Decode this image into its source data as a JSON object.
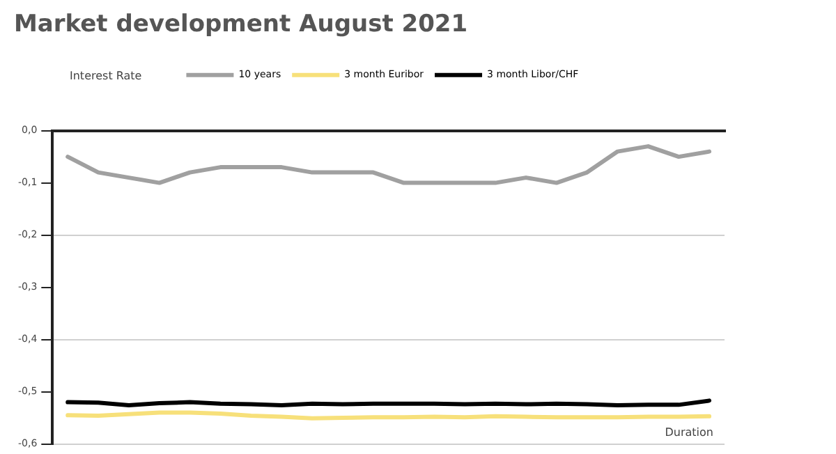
{
  "chart_data": {
    "type": "line",
    "title": "Market development August 2021",
    "ylabel": "Interest Rate",
    "xlabel": "Duration",
    "categories": [
      null,
      null,
      null,
      null,
      null,
      null,
      null,
      null,
      null,
      null,
      null,
      null,
      null,
      null,
      null,
      null,
      null,
      null,
      null,
      null,
      null,
      null
    ],
    "series": [
      {
        "name": "10 years",
        "color": "#a0a0a0",
        "values": [
          -0.05,
          -0.08,
          -0.09,
          -0.1,
          -0.08,
          -0.07,
          -0.07,
          -0.07,
          -0.08,
          -0.08,
          -0.08,
          -0.1,
          -0.1,
          -0.1,
          -0.1,
          -0.09,
          -0.1,
          -0.08,
          -0.04,
          -0.03,
          -0.05,
          -0.04
        ]
      },
      {
        "name": "3 month Euribor",
        "color": "#f7e07a",
        "values": [
          -0.545,
          -0.546,
          -0.543,
          -0.54,
          -0.54,
          -0.542,
          -0.546,
          -0.548,
          -0.551,
          -0.55,
          -0.549,
          -0.549,
          -0.548,
          -0.549,
          -0.547,
          -0.548,
          -0.549,
          -0.549,
          -0.549,
          -0.548,
          -0.548,
          -0.547
        ]
      },
      {
        "name": "3 month Libor/CHF",
        "color": "#000000",
        "values": [
          -0.52,
          -0.521,
          -0.526,
          -0.522,
          -0.52,
          -0.523,
          -0.524,
          -0.526,
          -0.523,
          -0.524,
          -0.523,
          -0.523,
          -0.523,
          -0.524,
          -0.523,
          -0.524,
          -0.523,
          -0.524,
          -0.526,
          -0.525,
          -0.525,
          -0.517
        ]
      }
    ],
    "ylim": [
      -0.6,
      0
    ],
    "yticks": [
      {
        "value": 0,
        "label": "0,0"
      },
      {
        "value": -0.1,
        "label": "-0,1"
      },
      {
        "value": -0.2,
        "label": "-0,2"
      },
      {
        "value": -0.3,
        "label": "-0,3"
      },
      {
        "value": -0.4,
        "label": "-0,4"
      },
      {
        "value": -0.5,
        "label": "-0,5"
      },
      {
        "value": -0.6,
        "label": "-0,6"
      }
    ],
    "grid": "y",
    "legend": "top",
    "marker": "none",
    "line_style": "solid"
  }
}
